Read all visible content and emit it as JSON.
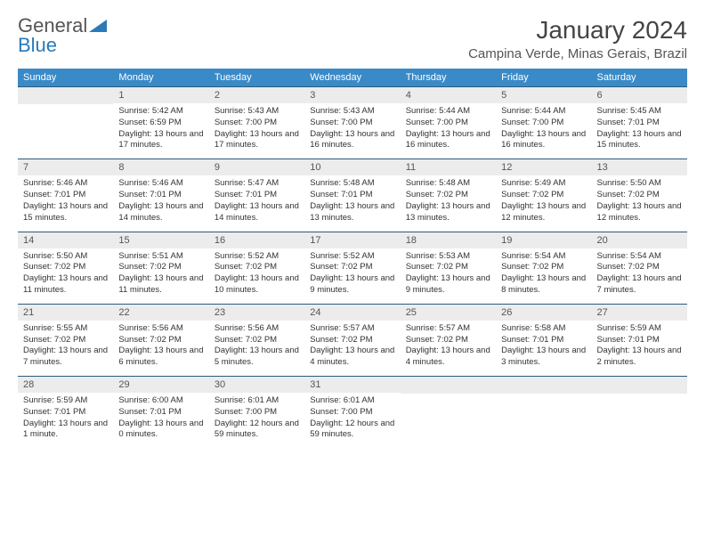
{
  "brand": {
    "word1": "General",
    "word2": "Blue"
  },
  "title": "January 2024",
  "location": "Campina Verde, Minas Gerais, Brazil",
  "colors": {
    "header_bg": "#3a8ac8",
    "header_text": "#ffffff",
    "daynum_bg": "#ececec",
    "row_border": "#2e5a7a",
    "brand_blue": "#2a7ab8"
  },
  "weekdays": [
    "Sunday",
    "Monday",
    "Tuesday",
    "Wednesday",
    "Thursday",
    "Friday",
    "Saturday"
  ],
  "weeks": [
    [
      {
        "num": "",
        "lines": []
      },
      {
        "num": "1",
        "lines": [
          "Sunrise: 5:42 AM",
          "Sunset: 6:59 PM",
          "Daylight: 13 hours and 17 minutes."
        ]
      },
      {
        "num": "2",
        "lines": [
          "Sunrise: 5:43 AM",
          "Sunset: 7:00 PM",
          "Daylight: 13 hours and 17 minutes."
        ]
      },
      {
        "num": "3",
        "lines": [
          "Sunrise: 5:43 AM",
          "Sunset: 7:00 PM",
          "Daylight: 13 hours and 16 minutes."
        ]
      },
      {
        "num": "4",
        "lines": [
          "Sunrise: 5:44 AM",
          "Sunset: 7:00 PM",
          "Daylight: 13 hours and 16 minutes."
        ]
      },
      {
        "num": "5",
        "lines": [
          "Sunrise: 5:44 AM",
          "Sunset: 7:00 PM",
          "Daylight: 13 hours and 16 minutes."
        ]
      },
      {
        "num": "6",
        "lines": [
          "Sunrise: 5:45 AM",
          "Sunset: 7:01 PM",
          "Daylight: 13 hours and 15 minutes."
        ]
      }
    ],
    [
      {
        "num": "7",
        "lines": [
          "Sunrise: 5:46 AM",
          "Sunset: 7:01 PM",
          "Daylight: 13 hours and 15 minutes."
        ]
      },
      {
        "num": "8",
        "lines": [
          "Sunrise: 5:46 AM",
          "Sunset: 7:01 PM",
          "Daylight: 13 hours and 14 minutes."
        ]
      },
      {
        "num": "9",
        "lines": [
          "Sunrise: 5:47 AM",
          "Sunset: 7:01 PM",
          "Daylight: 13 hours and 14 minutes."
        ]
      },
      {
        "num": "10",
        "lines": [
          "Sunrise: 5:48 AM",
          "Sunset: 7:01 PM",
          "Daylight: 13 hours and 13 minutes."
        ]
      },
      {
        "num": "11",
        "lines": [
          "Sunrise: 5:48 AM",
          "Sunset: 7:02 PM",
          "Daylight: 13 hours and 13 minutes."
        ]
      },
      {
        "num": "12",
        "lines": [
          "Sunrise: 5:49 AM",
          "Sunset: 7:02 PM",
          "Daylight: 13 hours and 12 minutes."
        ]
      },
      {
        "num": "13",
        "lines": [
          "Sunrise: 5:50 AM",
          "Sunset: 7:02 PM",
          "Daylight: 13 hours and 12 minutes."
        ]
      }
    ],
    [
      {
        "num": "14",
        "lines": [
          "Sunrise: 5:50 AM",
          "Sunset: 7:02 PM",
          "Daylight: 13 hours and 11 minutes."
        ]
      },
      {
        "num": "15",
        "lines": [
          "Sunrise: 5:51 AM",
          "Sunset: 7:02 PM",
          "Daylight: 13 hours and 11 minutes."
        ]
      },
      {
        "num": "16",
        "lines": [
          "Sunrise: 5:52 AM",
          "Sunset: 7:02 PM",
          "Daylight: 13 hours and 10 minutes."
        ]
      },
      {
        "num": "17",
        "lines": [
          "Sunrise: 5:52 AM",
          "Sunset: 7:02 PM",
          "Daylight: 13 hours and 9 minutes."
        ]
      },
      {
        "num": "18",
        "lines": [
          "Sunrise: 5:53 AM",
          "Sunset: 7:02 PM",
          "Daylight: 13 hours and 9 minutes."
        ]
      },
      {
        "num": "19",
        "lines": [
          "Sunrise: 5:54 AM",
          "Sunset: 7:02 PM",
          "Daylight: 13 hours and 8 minutes."
        ]
      },
      {
        "num": "20",
        "lines": [
          "Sunrise: 5:54 AM",
          "Sunset: 7:02 PM",
          "Daylight: 13 hours and 7 minutes."
        ]
      }
    ],
    [
      {
        "num": "21",
        "lines": [
          "Sunrise: 5:55 AM",
          "Sunset: 7:02 PM",
          "Daylight: 13 hours and 7 minutes."
        ]
      },
      {
        "num": "22",
        "lines": [
          "Sunrise: 5:56 AM",
          "Sunset: 7:02 PM",
          "Daylight: 13 hours and 6 minutes."
        ]
      },
      {
        "num": "23",
        "lines": [
          "Sunrise: 5:56 AM",
          "Sunset: 7:02 PM",
          "Daylight: 13 hours and 5 minutes."
        ]
      },
      {
        "num": "24",
        "lines": [
          "Sunrise: 5:57 AM",
          "Sunset: 7:02 PM",
          "Daylight: 13 hours and 4 minutes."
        ]
      },
      {
        "num": "25",
        "lines": [
          "Sunrise: 5:57 AM",
          "Sunset: 7:02 PM",
          "Daylight: 13 hours and 4 minutes."
        ]
      },
      {
        "num": "26",
        "lines": [
          "Sunrise: 5:58 AM",
          "Sunset: 7:01 PM",
          "Daylight: 13 hours and 3 minutes."
        ]
      },
      {
        "num": "27",
        "lines": [
          "Sunrise: 5:59 AM",
          "Sunset: 7:01 PM",
          "Daylight: 13 hours and 2 minutes."
        ]
      }
    ],
    [
      {
        "num": "28",
        "lines": [
          "Sunrise: 5:59 AM",
          "Sunset: 7:01 PM",
          "Daylight: 13 hours and 1 minute."
        ]
      },
      {
        "num": "29",
        "lines": [
          "Sunrise: 6:00 AM",
          "Sunset: 7:01 PM",
          "Daylight: 13 hours and 0 minutes."
        ]
      },
      {
        "num": "30",
        "lines": [
          "Sunrise: 6:01 AM",
          "Sunset: 7:00 PM",
          "Daylight: 12 hours and 59 minutes."
        ]
      },
      {
        "num": "31",
        "lines": [
          "Sunrise: 6:01 AM",
          "Sunset: 7:00 PM",
          "Daylight: 12 hours and 59 minutes."
        ]
      },
      {
        "num": "",
        "lines": []
      },
      {
        "num": "",
        "lines": []
      },
      {
        "num": "",
        "lines": []
      }
    ]
  ]
}
